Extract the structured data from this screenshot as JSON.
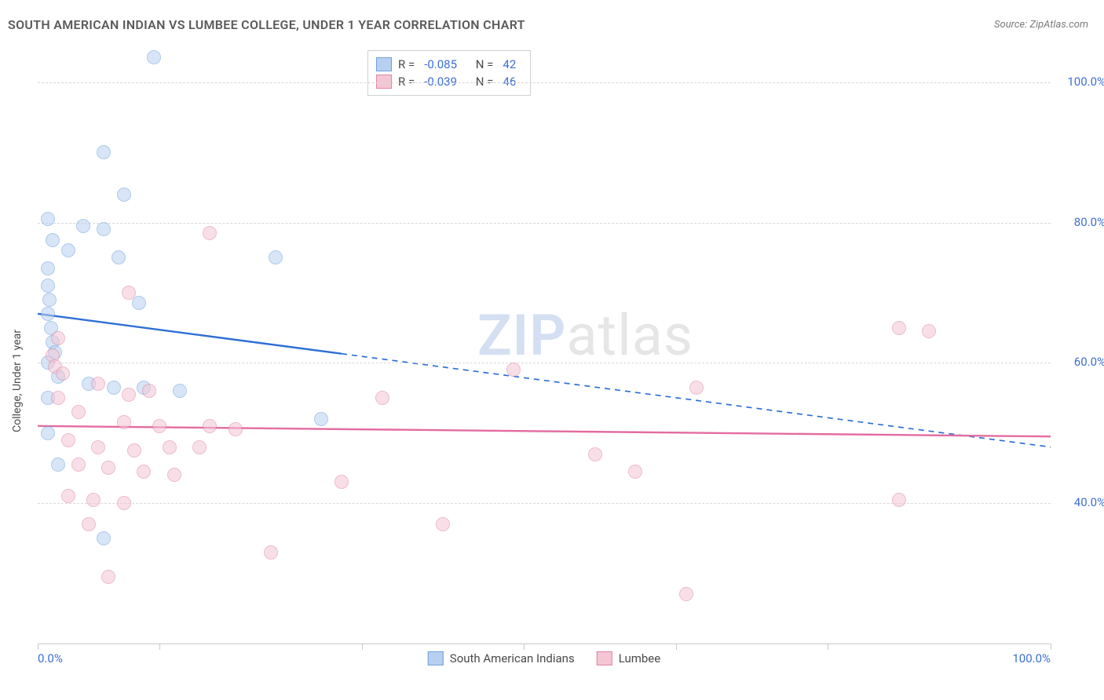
{
  "title": "SOUTH AMERICAN INDIAN VS LUMBEE COLLEGE, UNDER 1 YEAR CORRELATION CHART",
  "source_label": "Source:",
  "source_name": "ZipAtlas.com",
  "watermark": {
    "prefix": "ZIP",
    "suffix": "atlas"
  },
  "ylabel": "College, Under 1 year",
  "chart": {
    "type": "scatter",
    "xlim": [
      0,
      100
    ],
    "ylim": [
      20,
      105
    ],
    "yticks": [
      40,
      60,
      80,
      100
    ],
    "ytick_labels": [
      "40.0%",
      "60.0%",
      "80.0%",
      "100.0%"
    ],
    "xtick_positions": [
      0,
      12,
      32,
      48,
      63,
      78,
      100
    ],
    "xaxis_min_label": "0.0%",
    "xaxis_max_label": "100.0%",
    "background": "#ffffff",
    "grid_color": "#d8d8d8",
    "axis_color": "#c9c9c9",
    "label_color": "#3d6fd6"
  },
  "series": [
    {
      "name": "South American Indians",
      "key": "sai",
      "fill": "#b8d0f0",
      "stroke": "#6f9fe0",
      "fill_opacity": 0.55,
      "r_label": "R =",
      "r_value": "-0.085",
      "n_label": "N =",
      "n_value": "42",
      "trend": {
        "x1": 0,
        "y1": 67,
        "x2": 100,
        "y2": 48,
        "solid_until_x": 30,
        "color": "#2e6fd6",
        "width": 2.4
      },
      "points": [
        [
          11.5,
          103.5
        ],
        [
          6.5,
          90
        ],
        [
          8.5,
          84
        ],
        [
          1,
          80.5
        ],
        [
          4.5,
          79.5
        ],
        [
          6.5,
          79
        ],
        [
          1.5,
          77.5
        ],
        [
          3,
          76
        ],
        [
          8,
          75
        ],
        [
          1,
          73.5
        ],
        [
          23.5,
          75
        ],
        [
          1,
          71
        ],
        [
          1.2,
          69
        ],
        [
          10,
          68.5
        ],
        [
          1,
          67
        ],
        [
          1.3,
          65
        ],
        [
          1.5,
          63
        ],
        [
          1.7,
          61.5
        ],
        [
          1,
          60
        ],
        [
          2,
          58
        ],
        [
          5,
          57
        ],
        [
          7.5,
          56.5
        ],
        [
          10.5,
          56.5
        ],
        [
          14,
          56
        ],
        [
          1,
          55
        ],
        [
          28,
          52
        ],
        [
          1,
          50
        ],
        [
          2,
          45.5
        ],
        [
          6.5,
          35
        ]
      ]
    },
    {
      "name": "Lumbee",
      "key": "lumbee",
      "fill": "#f4c6d4",
      "stroke": "#e084a5",
      "fill_opacity": 0.55,
      "r_label": "R =",
      "r_value": "-0.039",
      "n_label": "N =",
      "n_value": "46",
      "trend": {
        "x1": 0,
        "y1": 51,
        "x2": 100,
        "y2": 49.5,
        "solid_until_x": 100,
        "color": "#e36ca0",
        "width": 2.4
      },
      "points": [
        [
          17,
          78.5
        ],
        [
          9,
          70
        ],
        [
          85,
          65
        ],
        [
          88,
          64.5
        ],
        [
          2,
          63.5
        ],
        [
          1.5,
          61
        ],
        [
          1.7,
          59.5
        ],
        [
          2.5,
          58.5
        ],
        [
          47,
          59
        ],
        [
          65,
          56.5
        ],
        [
          6,
          57
        ],
        [
          9,
          55.5
        ],
        [
          11,
          56
        ],
        [
          34,
          55
        ],
        [
          2,
          55
        ],
        [
          4,
          53
        ],
        [
          8.5,
          51.5
        ],
        [
          12,
          51
        ],
        [
          17,
          51
        ],
        [
          19.5,
          50.5
        ],
        [
          3,
          49
        ],
        [
          6,
          48
        ],
        [
          9.5,
          47.5
        ],
        [
          13,
          48
        ],
        [
          16,
          48
        ],
        [
          55,
          47
        ],
        [
          4,
          45.5
        ],
        [
          7,
          45
        ],
        [
          10.5,
          44.5
        ],
        [
          13.5,
          44
        ],
        [
          59,
          44.5
        ],
        [
          30,
          43
        ],
        [
          3,
          41
        ],
        [
          5.5,
          40.5
        ],
        [
          8.5,
          40
        ],
        [
          85,
          40.5
        ],
        [
          5,
          37
        ],
        [
          40,
          37
        ],
        [
          23,
          33
        ],
        [
          64,
          27
        ],
        [
          7,
          29.5
        ]
      ]
    }
  ]
}
